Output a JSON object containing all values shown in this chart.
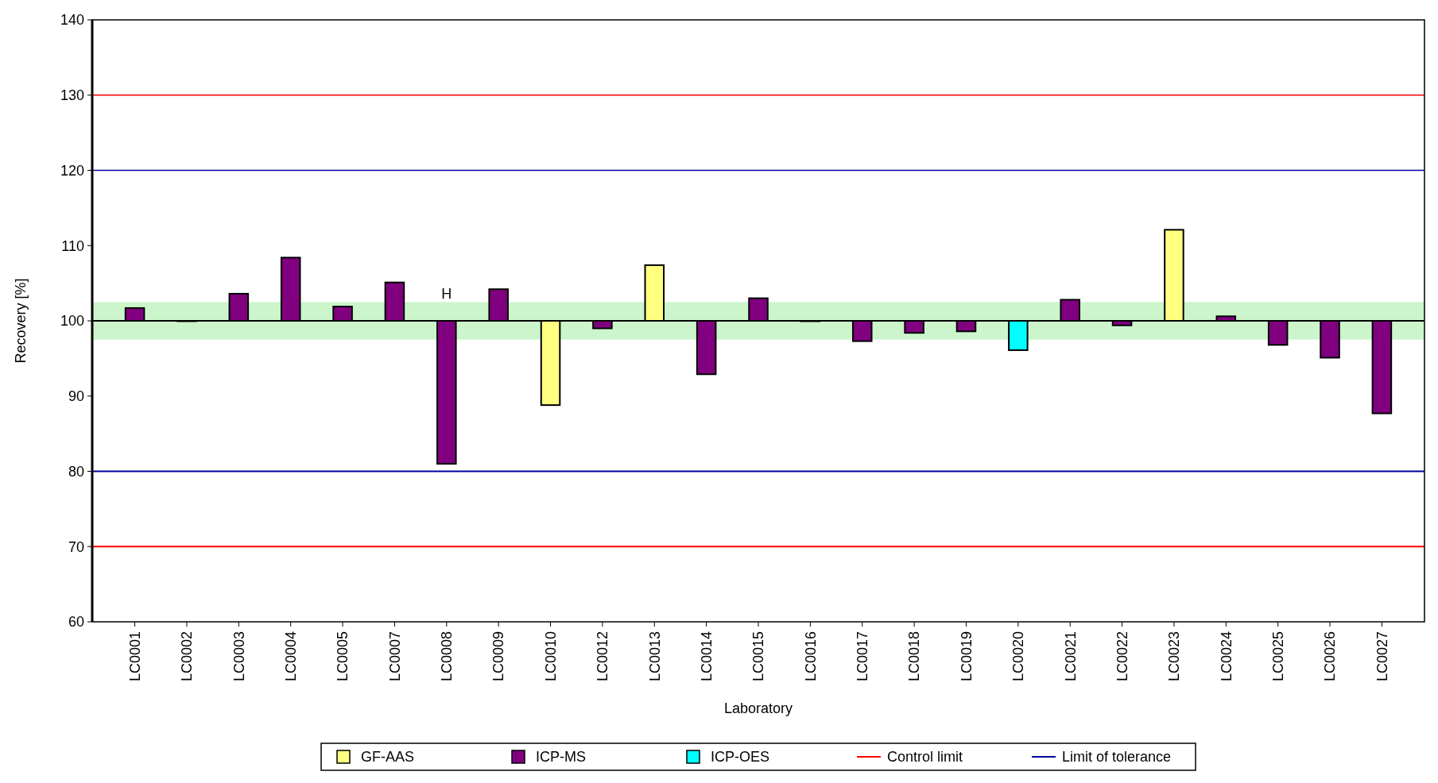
{
  "chart_data": {
    "type": "bar",
    "xlabel": "Laboratory",
    "ylabel": "Recovery [%]",
    "categories": [
      "LC0001",
      "LC0002",
      "LC0003",
      "LC0004",
      "LC0005",
      "LC0007",
      "LC0008",
      "LC0009",
      "LC0010",
      "LC0012",
      "LC0013",
      "LC0014",
      "LC0015",
      "LC0016",
      "LC0017",
      "LC0018",
      "LC0019",
      "LC0020",
      "LC0021",
      "LC0022",
      "LC0023",
      "LC0024",
      "LC0025",
      "LC0026",
      "LC0027"
    ],
    "series": [
      {
        "name": "GF-AAS",
        "color": "#ffff80",
        "base": [
          null,
          null,
          null,
          null,
          null,
          null,
          null,
          null,
          100,
          null,
          100,
          null,
          null,
          null,
          null,
          null,
          null,
          null,
          null,
          null,
          100,
          null,
          null,
          null,
          null
        ],
        "values": [
          null,
          null,
          null,
          null,
          null,
          null,
          null,
          null,
          -11.2,
          null,
          7.4,
          null,
          null,
          null,
          null,
          null,
          null,
          null,
          null,
          null,
          12.1,
          null,
          null,
          null,
          null
        ]
      },
      {
        "name": "ICP-MS",
        "color": "#800080",
        "base": [
          100,
          100,
          100,
          100,
          100,
          100,
          100,
          100,
          null,
          100,
          null,
          100,
          100,
          100,
          100,
          100,
          100,
          null,
          100,
          100,
          null,
          100,
          100,
          100,
          100
        ],
        "values": [
          1.7,
          0,
          3.6,
          8.4,
          1.9,
          5.1,
          -19.0,
          4.2,
          null,
          -1.0,
          null,
          -7.1,
          3.0,
          0,
          -2.7,
          -1.6,
          -1.4,
          null,
          2.8,
          -0.6,
          null,
          0.6,
          -3.2,
          -4.9,
          -12.3
        ]
      },
      {
        "name": "ICP-OES",
        "color": "#00ffff",
        "base": [
          null,
          null,
          null,
          null,
          null,
          null,
          null,
          null,
          null,
          null,
          null,
          null,
          null,
          null,
          null,
          null,
          null,
          100,
          null,
          null,
          null,
          null,
          null,
          null,
          null
        ],
        "values": [
          null,
          null,
          null,
          null,
          null,
          null,
          null,
          null,
          null,
          null,
          null,
          null,
          null,
          null,
          null,
          null,
          null,
          -3.9,
          null,
          null,
          null,
          null,
          null,
          null,
          null
        ]
      }
    ],
    "ylim": [
      60,
      140
    ],
    "yticks": [
      60,
      70,
      80,
      90,
      100,
      110,
      120,
      130,
      140
    ],
    "ref_lines": [
      {
        "axis": "y",
        "value": 130,
        "label": "Control limit",
        "color": "#ff0000"
      },
      {
        "axis": "y",
        "value": 70,
        "color": "#ff0000"
      },
      {
        "axis": "y",
        "value": 120,
        "label": "Limit of tolerance",
        "color": "#0000a0"
      },
      {
        "axis": "y",
        "value": 80,
        "color": "#0000a0"
      },
      {
        "axis": "y",
        "value": 100,
        "color": "#000000"
      }
    ],
    "bands": [
      {
        "axis": "y",
        "from": 97.5,
        "to": 102.5,
        "color": "#ccf5cc"
      }
    ],
    "annotations": [
      {
        "text": "H",
        "x": "LC0008",
        "y": 103
      }
    ],
    "grid": false,
    "legend": "bottom"
  }
}
